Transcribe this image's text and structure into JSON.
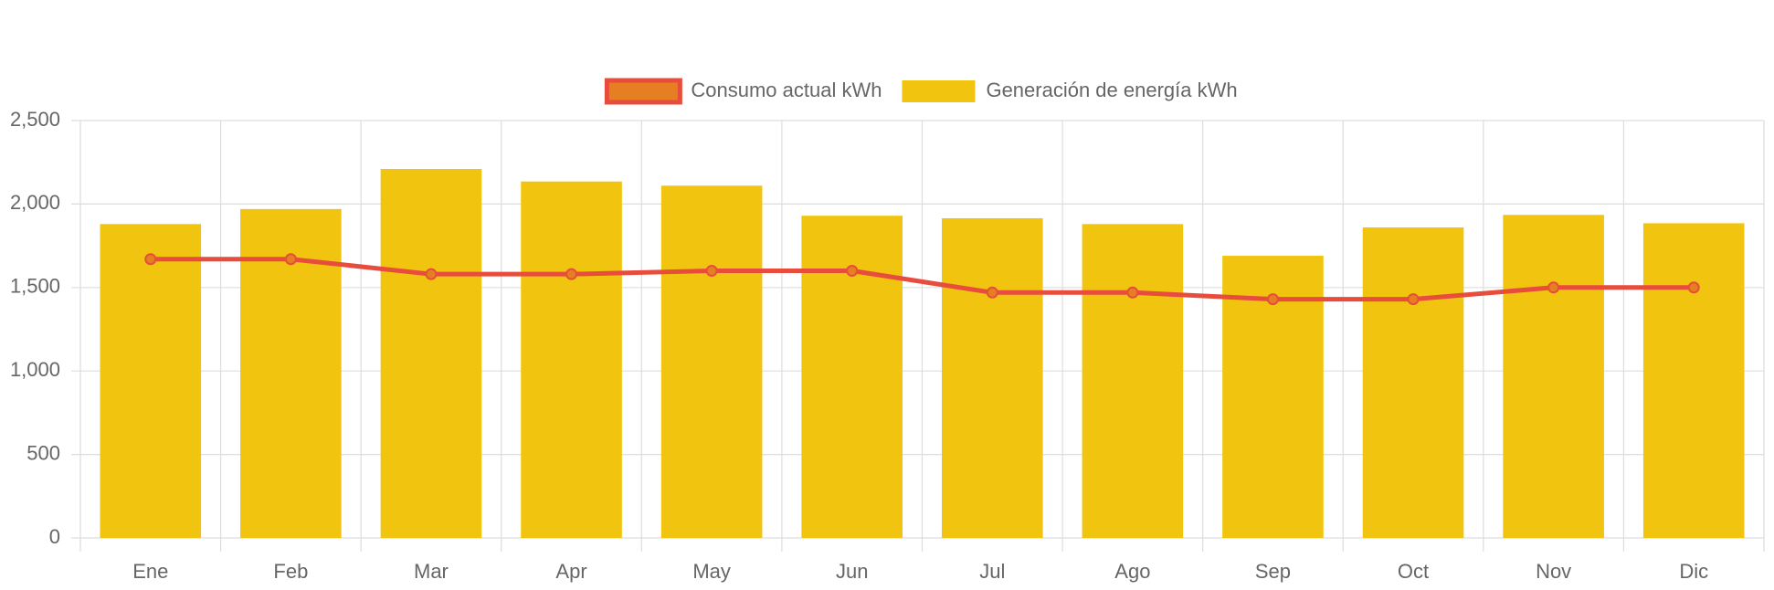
{
  "chart_data": {
    "type": "bar",
    "categories": [
      "Ene",
      "Feb",
      "Mar",
      "Apr",
      "May",
      "Jun",
      "Jul",
      "Ago",
      "Sep",
      "Oct",
      "Nov",
      "Dic"
    ],
    "series": [
      {
        "name": "Consumo actual kWh",
        "type": "line",
        "color": "#e74c3c",
        "point_color": "#e67e22",
        "values": [
          1670,
          1670,
          1580,
          1580,
          1600,
          1600,
          1470,
          1470,
          1430,
          1430,
          1500,
          1500
        ]
      },
      {
        "name": "Generación de energía kWh",
        "type": "bar",
        "color": "#f1c40f",
        "values": [
          1880,
          1970,
          2210,
          2135,
          2110,
          1930,
          1915,
          1880,
          1690,
          1860,
          1935,
          1885
        ]
      }
    ],
    "ylim": [
      0,
      2500
    ],
    "yticks": [
      0,
      500,
      {
        "value": 1000,
        "label": "1,000"
      },
      {
        "value": 1500,
        "label": "1,500"
      },
      {
        "value": 2000,
        "label": "2,000"
      },
      {
        "value": 2500,
        "label": "2,500"
      }
    ],
    "grid": true,
    "legend": "top"
  }
}
